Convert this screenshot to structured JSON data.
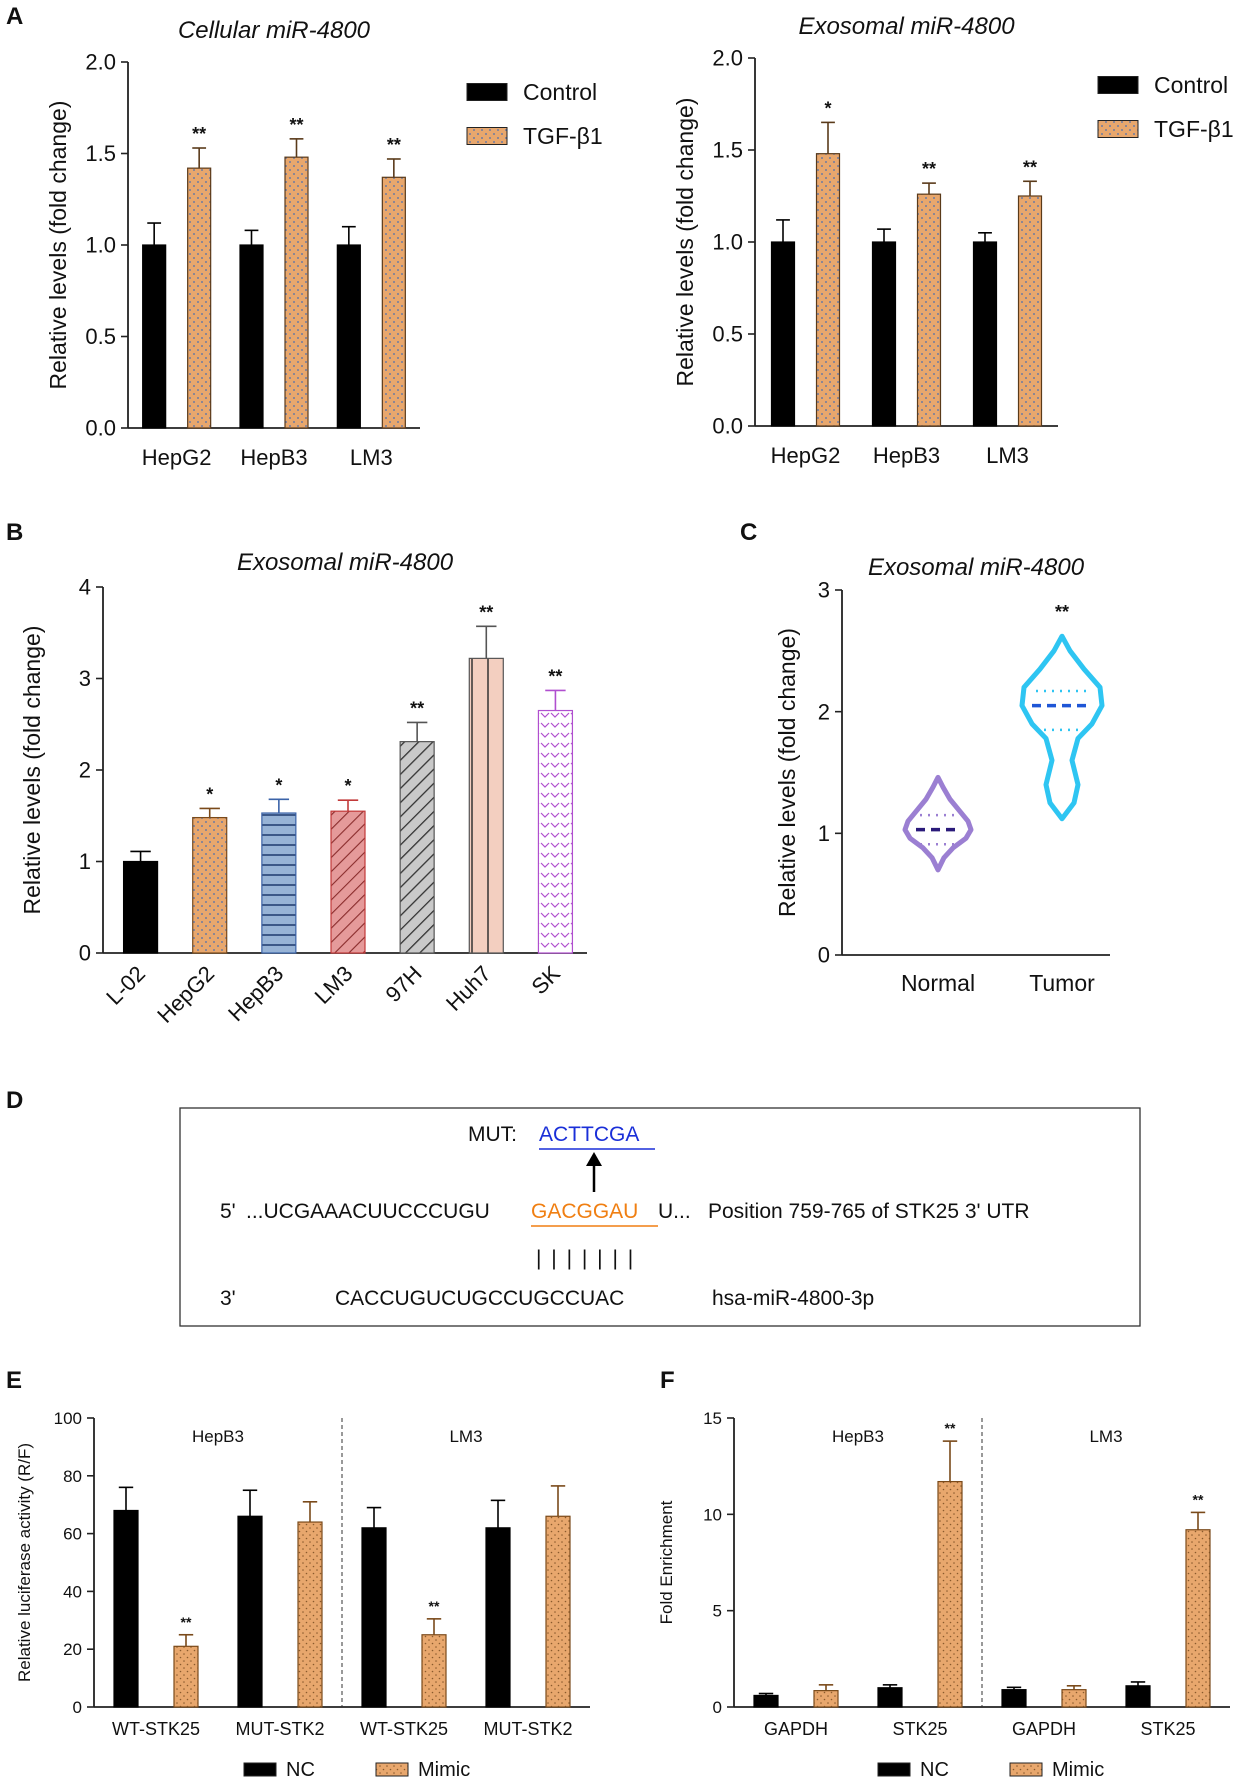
{
  "colors": {
    "control": "#000000",
    "tgf": "#e8a76d",
    "tgf_dot": "#4a6fb0",
    "hepb3": "#97b3d6",
    "lm3": "#e59a9a",
    "h97": "#c9c9c9",
    "huh7": "#f3cfc0",
    "sk": "#e9a7f0",
    "normal": "#9b7fd2",
    "tumor": "#2ec5f2",
    "mut": "#1a2fd8",
    "site": "#f07f12"
  },
  "panels": {
    "A": "A",
    "B": "B",
    "C": "C",
    "D": "D",
    "E": "E",
    "F": "F"
  },
  "chart_data": [
    {
      "id": "A1",
      "type": "bar",
      "title": "Cellular miR-4800",
      "ylabel": "Relative levels (fold change)",
      "xlabel": "",
      "ylim": [
        0,
        2.0
      ],
      "yticks": [
        "0.0",
        "0.5",
        "1.0",
        "1.5",
        "2.0"
      ],
      "categories": [
        "HepG2",
        "HepB3",
        "LM3"
      ],
      "series": [
        {
          "name": "Control",
          "values": [
            1.0,
            1.0,
            1.0
          ],
          "errors": [
            0.12,
            0.08,
            0.1
          ],
          "sig": [
            "",
            "",
            ""
          ]
        },
        {
          "name": "TGF-β1",
          "values": [
            1.42,
            1.48,
            1.37
          ],
          "errors": [
            0.11,
            0.1,
            0.1
          ],
          "sig": [
            "**",
            "**",
            "**"
          ]
        }
      ],
      "legend": [
        "Control",
        "TGF-β1"
      ]
    },
    {
      "id": "A2",
      "type": "bar",
      "title": "Exosomal miR-4800",
      "ylabel": "Relative levels (fold change)",
      "xlabel": "",
      "ylim": [
        0,
        2.0
      ],
      "yticks": [
        "0.0",
        "0.5",
        "1.0",
        "1.5",
        "2.0"
      ],
      "categories": [
        "HepG2",
        "HepB3",
        "LM3"
      ],
      "series": [
        {
          "name": "Control",
          "values": [
            1.0,
            1.0,
            1.0
          ],
          "errors": [
            0.12,
            0.07,
            0.05
          ],
          "sig": [
            "",
            "",
            ""
          ]
        },
        {
          "name": "TGF-β1",
          "values": [
            1.48,
            1.26,
            1.25
          ],
          "errors": [
            0.17,
            0.06,
            0.08
          ],
          "sig": [
            "*",
            "**",
            "**"
          ]
        }
      ],
      "legend": [
        "Control",
        "TGF-β1"
      ]
    },
    {
      "id": "B",
      "type": "bar",
      "title": "Exosomal miR-4800",
      "ylabel": "Relative levels (fold change)",
      "xlabel": "",
      "ylim": [
        0,
        4
      ],
      "yticks": [
        "0",
        "1",
        "2",
        "3",
        "4"
      ],
      "categories": [
        "L-02",
        "HepG2",
        "HepB3",
        "LM3",
        "97H",
        "Huh7",
        "SK"
      ],
      "values": [
        1.0,
        1.48,
        1.53,
        1.55,
        2.31,
        3.22,
        2.65
      ],
      "errors": [
        0.11,
        0.1,
        0.15,
        0.12,
        0.21,
        0.35,
        0.22
      ],
      "sig": [
        "",
        "*",
        "*",
        "*",
        "**",
        "**",
        "**"
      ]
    },
    {
      "id": "C",
      "type": "violin",
      "title": "Exosomal miR-4800",
      "ylabel": "Relative levels (fold change)",
      "xlabel": "",
      "ylim": [
        0,
        3
      ],
      "yticks": [
        "0",
        "1",
        "2",
        "3"
      ],
      "categories": [
        "Normal",
        "Tumor"
      ],
      "medians": [
        1.03,
        2.05
      ],
      "q1": [
        0.91,
        1.85
      ],
      "q3": [
        1.15,
        2.17
      ],
      "min": [
        0.7,
        1.12
      ],
      "max": [
        1.46,
        2.62
      ],
      "sig": [
        "",
        "**"
      ]
    },
    {
      "id": "E",
      "type": "bar",
      "title": "",
      "ylabel": "Relative luciferase activity (R/F)",
      "xlabel": "",
      "ylim": [
        0,
        100
      ],
      "yticks": [
        "0",
        "20",
        "40",
        "60",
        "80",
        "100"
      ],
      "groups": [
        "HepB3",
        "LM3"
      ],
      "categories": [
        "WT-STK25",
        "MUT-STK2",
        "WT-STK25",
        "MUT-STK2"
      ],
      "series": [
        {
          "name": "NC",
          "values": [
            68,
            66,
            62,
            62
          ],
          "errors": [
            8,
            9,
            7,
            9.5
          ],
          "sig": [
            "",
            "",
            "",
            ""
          ]
        },
        {
          "name": "Mimic",
          "values": [
            21,
            64,
            25,
            66
          ],
          "errors": [
            4,
            7,
            5.5,
            10.5
          ],
          "sig": [
            "**",
            "",
            "**",
            ""
          ]
        }
      ],
      "legend": [
        "NC",
        "Mimic"
      ]
    },
    {
      "id": "F",
      "type": "bar",
      "title": "",
      "ylabel": "Fold Enrichment",
      "xlabel": "",
      "ylim": [
        0,
        15
      ],
      "yticks": [
        "0",
        "5",
        "10",
        "15"
      ],
      "groups": [
        "HepB3",
        "LM3"
      ],
      "categories": [
        "GAPDH",
        "STK25",
        "GAPDH",
        "STK25"
      ],
      "series": [
        {
          "name": "NC",
          "values": [
            0.6,
            1.0,
            0.9,
            1.1
          ],
          "errors": [
            0.1,
            0.15,
            0.12,
            0.2
          ],
          "sig": [
            "",
            "",
            "",
            ""
          ]
        },
        {
          "name": "Mimic",
          "values": [
            0.85,
            11.7,
            0.9,
            9.2
          ],
          "errors": [
            0.3,
            2.1,
            0.2,
            0.9
          ],
          "sig": [
            "",
            "**",
            "",
            "**"
          ]
        }
      ],
      "legend": [
        "NC",
        "Mimic"
      ]
    }
  ],
  "panelD": {
    "mut_label": "MUT:",
    "mut_seq": "ACTTCGA",
    "row1_prefix": "5'",
    "row1_seq_a": "...UCGAAACUUCCCUGU",
    "row1_site": "GACGGAU",
    "row1_seq_b": "U...",
    "row1_note": "Position 759-765 of STK25 3' UTR",
    "pairing": "|  |  |  |  |  |  |",
    "row2_prefix": "3'",
    "row2_seq": "CACCUGUCUGCCUGCCUAC",
    "row2_note": "hsa-miR-4800-3p"
  }
}
